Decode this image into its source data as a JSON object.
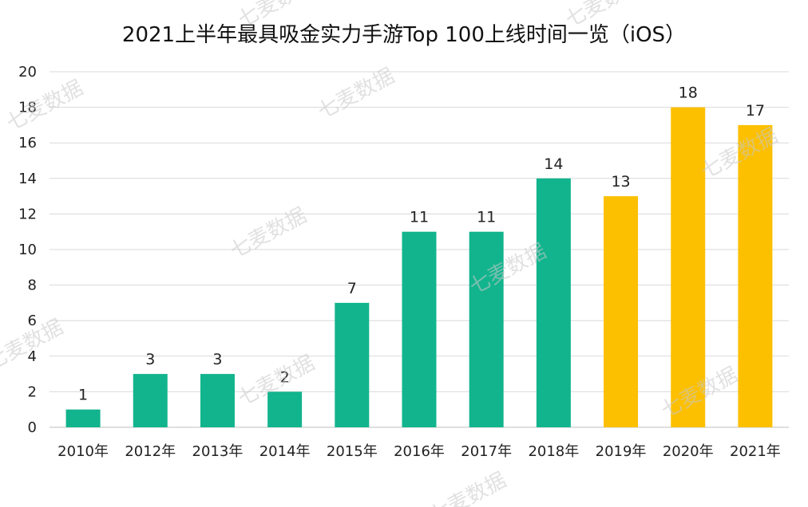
{
  "chart_data": {
    "type": "bar",
    "title": "2021上半年最具吸金实力手游Top 100上线时间一览（iOS）",
    "xlabel": "",
    "ylabel": "",
    "categories": [
      "2010年",
      "2012年",
      "2013年",
      "2014年",
      "2015年",
      "2016年",
      "2017年",
      "2018年",
      "2019年",
      "2020年",
      "2021年"
    ],
    "values": [
      1,
      3,
      3,
      2,
      7,
      11,
      11,
      14,
      13,
      18,
      17
    ],
    "ylim": [
      0,
      20
    ],
    "yticks": [
      0,
      2,
      4,
      6,
      8,
      10,
      12,
      14,
      16,
      18,
      20
    ],
    "grid": true,
    "legend": "none",
    "colors": {
      "primary": "#12b48d",
      "highlight": "#fcc000",
      "highlight_categories": [
        "2019年",
        "2020年",
        "2021年"
      ]
    },
    "watermark": "七麦数据"
  }
}
